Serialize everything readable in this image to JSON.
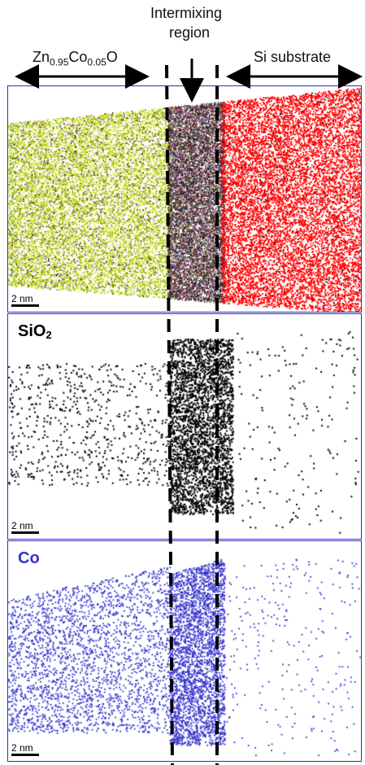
{
  "header": {
    "left_label_main": "Zn",
    "left_label_sub1": "0.95",
    "left_label_co": "Co",
    "left_label_sub2": "0.05",
    "left_label_o": "O",
    "middle_line1": "Intermixing",
    "middle_line2": "region",
    "right_label": "Si substrate"
  },
  "panels": {
    "top": {
      "scale": "2 nm"
    },
    "middle": {
      "label": "SiO",
      "label_sub": "2",
      "scale": "2 nm"
    },
    "bottom": {
      "label": "Co",
      "scale": "2 nm"
    }
  },
  "colors": {
    "border": "#2f2fb8",
    "zno_green": "#b9d400",
    "si_red": "#ff0000",
    "co_blue": "#3333cc",
    "sio2_black": "#000000"
  }
}
